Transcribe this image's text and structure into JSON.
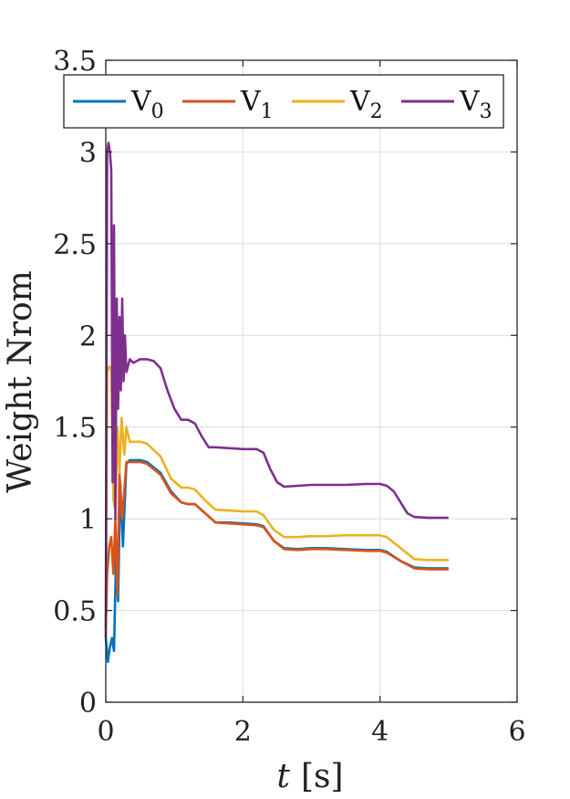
{
  "chart_data": {
    "type": "line",
    "title": "",
    "xlabel_var": "t",
    "xlabel_unit": "[s]",
    "ylabel": "Weight Nrom",
    "xlim": [
      0,
      6
    ],
    "ylim": [
      0,
      3.5
    ],
    "xticks": [
      0,
      2,
      4,
      6
    ],
    "xtick_labels": [
      "0",
      "2",
      "4",
      "6"
    ],
    "yticks": [
      0,
      0.5,
      1,
      1.5,
      2,
      2.5,
      3,
      3.5
    ],
    "ytick_labels": [
      "0",
      "0.5",
      "1",
      "1.5",
      "2",
      "2.5",
      "3",
      "3.5"
    ],
    "grid": true,
    "legend_position": "top",
    "series": [
      {
        "name": "V",
        "subscript": "0",
        "color": "#0072BD",
        "x": [
          0,
          0.03,
          0.06,
          0.09,
          0.12,
          0.15,
          0.18,
          0.21,
          0.25,
          0.3,
          0.35,
          0.5,
          0.6,
          0.8,
          0.95,
          1.1,
          1.2,
          1.3,
          1.45,
          1.6,
          1.8,
          2.0,
          2.2,
          2.3,
          2.45,
          2.6,
          2.8,
          3.0,
          3.2,
          3.5,
          3.8,
          4.0,
          4.1,
          4.3,
          4.5,
          4.7,
          5.0
        ],
        "y": [
          0.35,
          0.22,
          0.3,
          0.35,
          0.28,
          0.8,
          0.55,
          1.2,
          0.85,
          1.3,
          1.32,
          1.32,
          1.31,
          1.25,
          1.15,
          1.09,
          1.08,
          1.08,
          1.03,
          0.98,
          0.98,
          0.975,
          0.97,
          0.96,
          0.88,
          0.84,
          0.835,
          0.84,
          0.84,
          0.835,
          0.83,
          0.83,
          0.82,
          0.77,
          0.735,
          0.73,
          0.73
        ]
      },
      {
        "name": "V",
        "subscript": "1",
        "color": "#D95319",
        "x": [
          0,
          0.02,
          0.05,
          0.08,
          0.11,
          0.14,
          0.17,
          0.2,
          0.24,
          0.3,
          0.35,
          0.5,
          0.6,
          0.8,
          0.95,
          1.1,
          1.2,
          1.3,
          1.45,
          1.6,
          1.8,
          2.0,
          2.2,
          2.3,
          2.45,
          2.6,
          2.8,
          3.0,
          3.2,
          3.5,
          3.8,
          4.0,
          4.1,
          4.3,
          4.5,
          4.7,
          5.0
        ],
        "y": [
          0.4,
          0.7,
          0.85,
          0.9,
          0.7,
          1.0,
          0.58,
          1.25,
          1.0,
          1.31,
          1.31,
          1.31,
          1.3,
          1.24,
          1.14,
          1.09,
          1.08,
          1.08,
          1.03,
          0.98,
          0.975,
          0.97,
          0.965,
          0.955,
          0.88,
          0.835,
          0.83,
          0.835,
          0.835,
          0.83,
          0.825,
          0.825,
          0.815,
          0.77,
          0.73,
          0.725,
          0.725
        ]
      },
      {
        "name": "V",
        "subscript": "2",
        "color": "#EDB120",
        "x": [
          0,
          0.02,
          0.05,
          0.08,
          0.11,
          0.14,
          0.17,
          0.2,
          0.23,
          0.27,
          0.3,
          0.35,
          0.5,
          0.6,
          0.8,
          0.95,
          1.1,
          1.2,
          1.3,
          1.45,
          1.6,
          1.8,
          2.0,
          2.2,
          2.3,
          2.45,
          2.6,
          2.8,
          3.0,
          3.2,
          3.5,
          3.8,
          4.0,
          4.1,
          4.3,
          4.5,
          4.7,
          5.0
        ],
        "y": [
          0.45,
          1.8,
          1.83,
          1.82,
          1.1,
          1.05,
          1.5,
          1.25,
          1.55,
          1.35,
          1.5,
          1.42,
          1.42,
          1.41,
          1.34,
          1.22,
          1.17,
          1.17,
          1.16,
          1.1,
          1.05,
          1.045,
          1.04,
          1.04,
          1.02,
          0.94,
          0.9,
          0.9,
          0.905,
          0.905,
          0.91,
          0.91,
          0.91,
          0.9,
          0.84,
          0.78,
          0.775,
          0.775
        ]
      },
      {
        "name": "V",
        "subscript": "3",
        "color": "#7E2F8E",
        "x": [
          0,
          0.02,
          0.04,
          0.06,
          0.08,
          0.1,
          0.12,
          0.14,
          0.16,
          0.18,
          0.2,
          0.22,
          0.24,
          0.26,
          0.28,
          0.3,
          0.35,
          0.4,
          0.5,
          0.6,
          0.7,
          0.8,
          0.9,
          1.0,
          1.1,
          1.2,
          1.3,
          1.4,
          1.5,
          1.6,
          1.8,
          2.0,
          2.2,
          2.3,
          2.4,
          2.5,
          2.6,
          2.8,
          3.0,
          3.2,
          3.5,
          3.8,
          4.0,
          4.1,
          4.2,
          4.3,
          4.4,
          4.5,
          4.7,
          5.0
        ],
        "y": [
          0.35,
          3.0,
          3.05,
          3.0,
          2.9,
          1.2,
          2.6,
          1.0,
          2.2,
          1.6,
          2.1,
          1.7,
          2.2,
          1.75,
          2.0,
          1.8,
          1.87,
          1.85,
          1.87,
          1.87,
          1.86,
          1.82,
          1.7,
          1.6,
          1.54,
          1.54,
          1.52,
          1.45,
          1.39,
          1.39,
          1.385,
          1.38,
          1.38,
          1.36,
          1.27,
          1.2,
          1.175,
          1.18,
          1.185,
          1.185,
          1.185,
          1.19,
          1.19,
          1.18,
          1.15,
          1.09,
          1.03,
          1.01,
          1.005,
          1.005
        ]
      }
    ]
  }
}
